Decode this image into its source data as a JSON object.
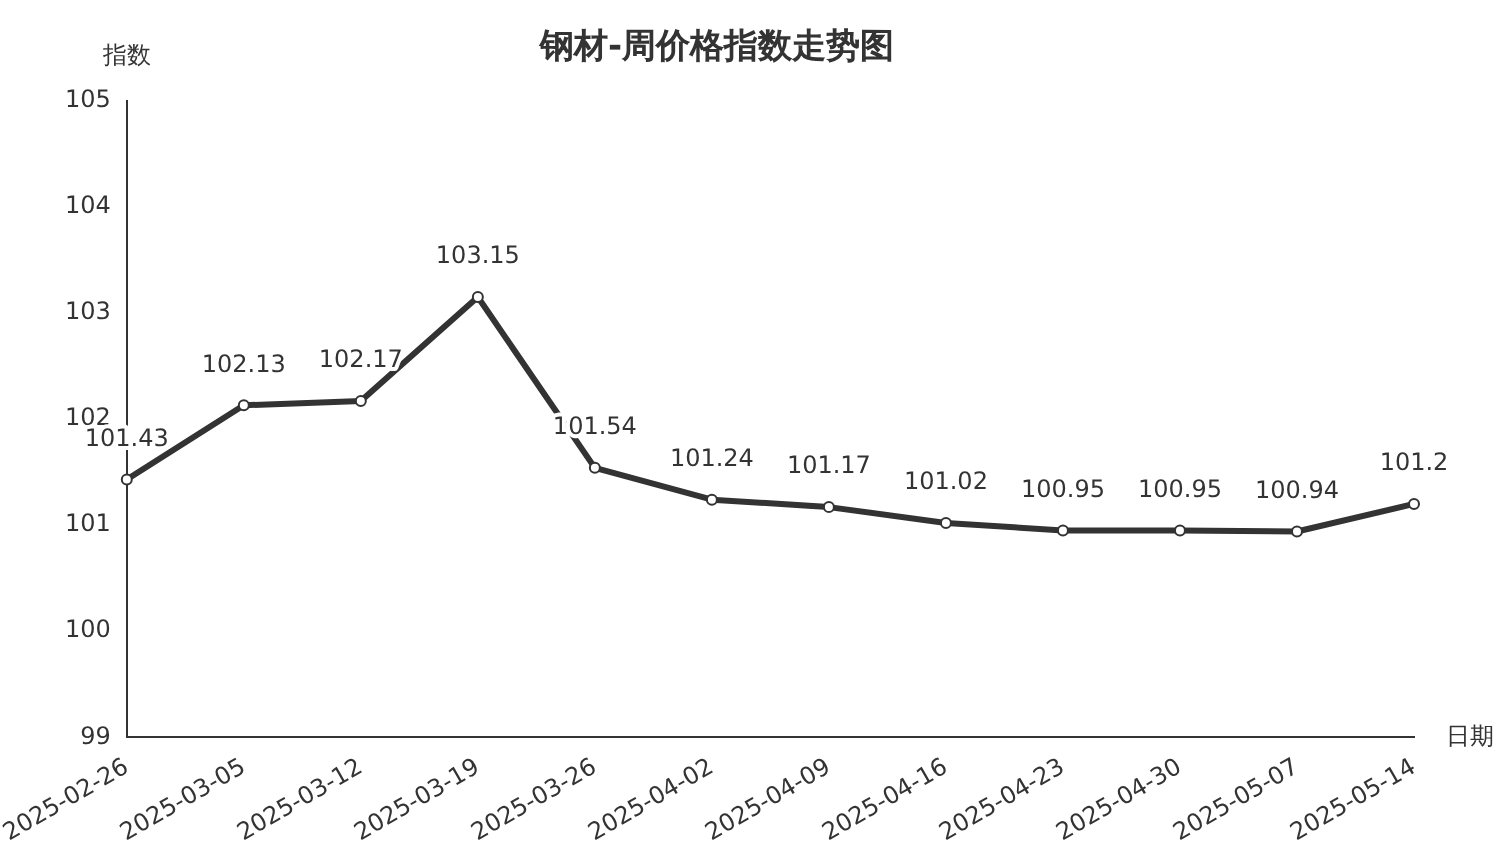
{
  "chart_data": {
    "type": "line",
    "title": "钢材-周价格指数走势图",
    "xlabel": "日期",
    "ylabel": "指数",
    "categories": [
      "2025-02-26",
      "2025-03-05",
      "2025-03-12",
      "2025-03-19",
      "2025-03-26",
      "2025-04-02",
      "2025-04-09",
      "2025-04-16",
      "2025-04-23",
      "2025-04-30",
      "2025-05-07",
      "2025-05-14"
    ],
    "series": [
      {
        "color": "#333333",
        "values": [
          101.43,
          102.13,
          102.17,
          103.15,
          101.54,
          101.24,
          101.17,
          101.02,
          100.95,
          100.95,
          100.94,
          101.2
        ]
      }
    ],
    "ylim": [
      99,
      105
    ],
    "yticks": [
      99,
      100,
      101,
      102,
      103,
      104,
      105
    ],
    "grid": false,
    "legend": false,
    "marker": "circle",
    "line_style": "solid",
    "data_labels": true
  }
}
